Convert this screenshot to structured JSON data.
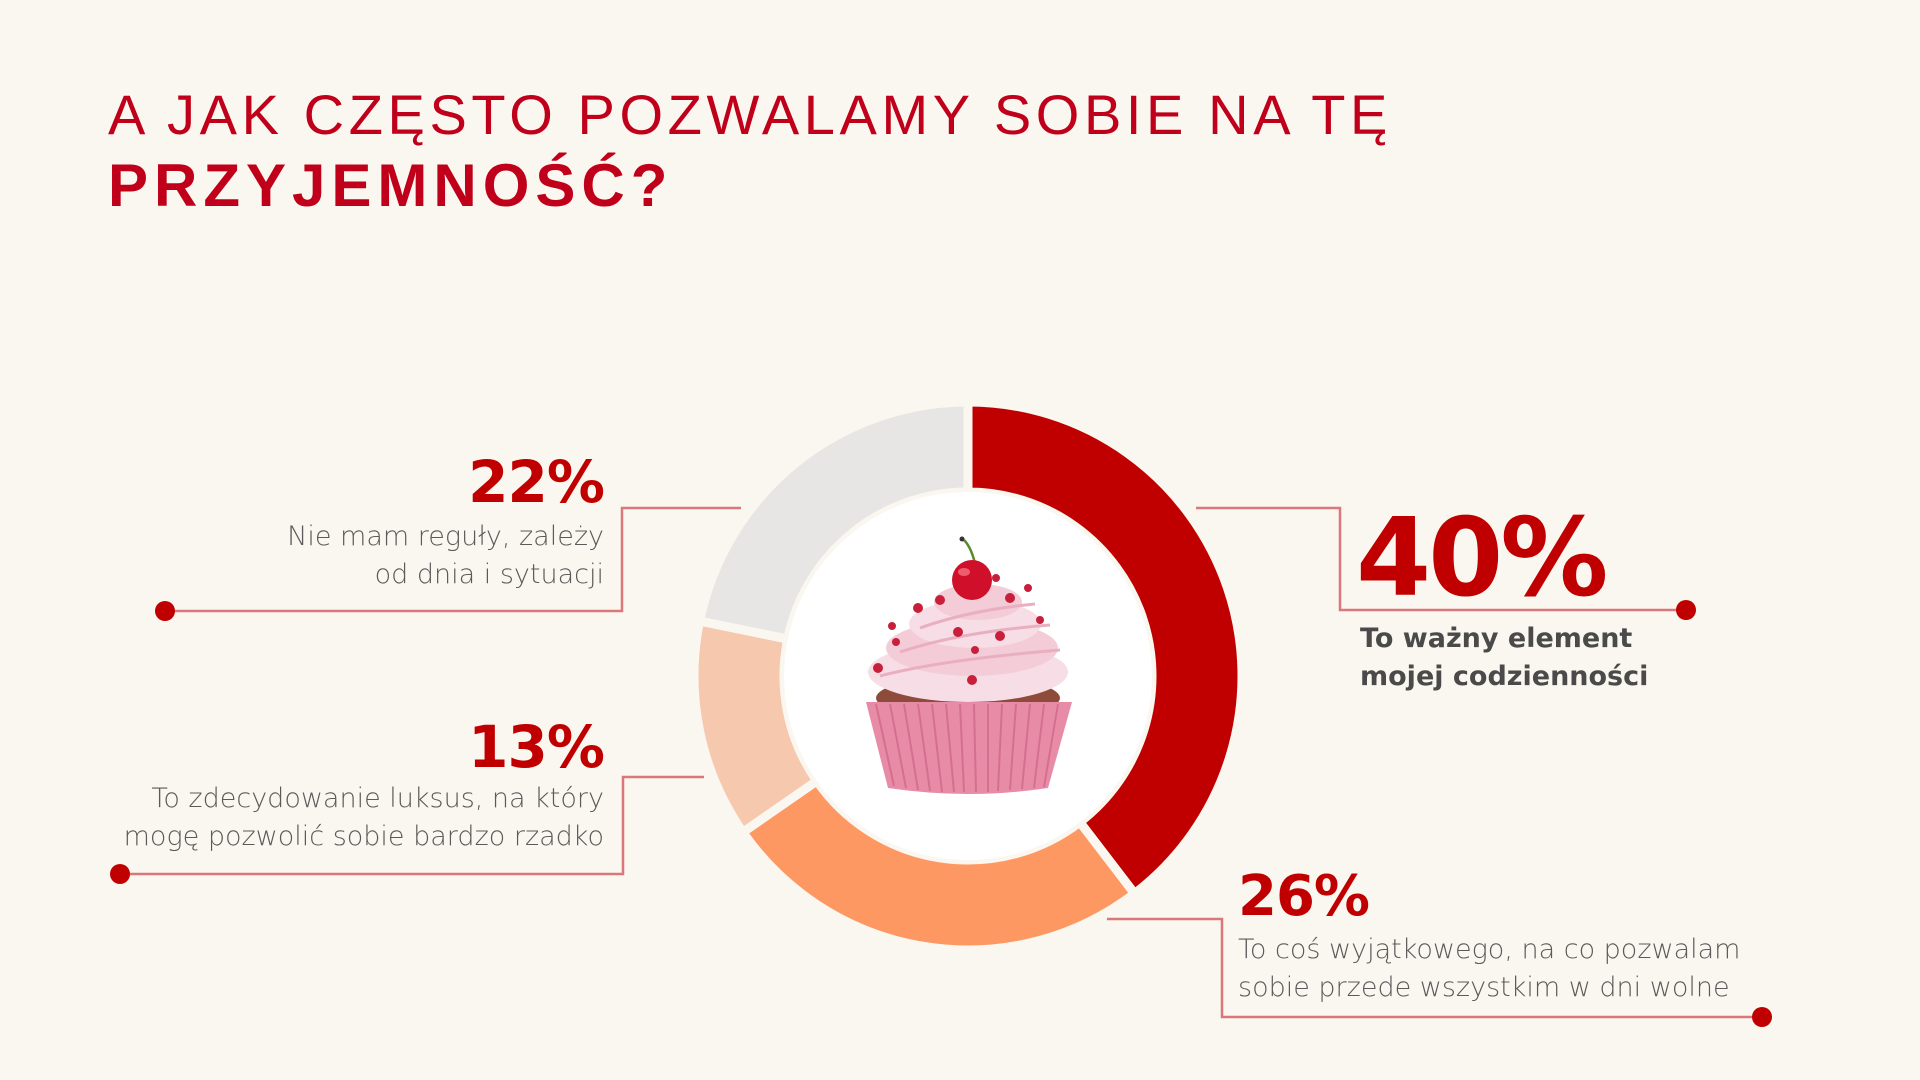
{
  "title": {
    "line1": "A JAK CZĘSTO POZWALAMY SOBIE NA TĘ",
    "line2": "PRZYJEMNOŚĆ?"
  },
  "colors": {
    "background": "#FAF7F0",
    "title": "#C0001A",
    "accent": "#C00000",
    "connector": "#D9777B",
    "label_text": "#5A5A5A",
    "hole": "#FFFFFF"
  },
  "center_image": {
    "icon": "cupcake-with-cherry-icon"
  },
  "segments": [
    {
      "id": "daily",
      "percent_label": "40%",
      "value": 40,
      "color": "#C00000",
      "label_lines": [
        "To ważny element",
        "mojej codzienności"
      ]
    },
    {
      "id": "special",
      "percent_label": "26%",
      "value": 26,
      "color": "#FE9862",
      "label_lines": [
        "To coś wyjątkowego, na co pozwalam",
        "sobie przede wszystkim w dni wolne"
      ]
    },
    {
      "id": "luxury",
      "percent_label": "13%",
      "value": 13,
      "color": "#F6C8AE",
      "label_lines": [
        "To zdecydowanie luksus, na który",
        "mogę pozwolić sobie bardzo rzadko"
      ]
    },
    {
      "id": "no-rule",
      "percent_label": "22%",
      "value": 22,
      "color": "#E8E6E4",
      "label_lines": [
        "Nie mam reguły, zależy",
        "od dnia i sytuacji"
      ]
    }
  ],
  "chart_data": {
    "type": "pie",
    "variant": "donut",
    "title": "A JAK CZĘSTO POZWALAMY SOBIE NA TĘ PRZYJEMNOŚĆ?",
    "categories": [
      "To ważny element mojej codzienności",
      "To coś wyjątkowego, na co pozwalam sobie przede wszystkim w dni wolne",
      "To zdecydowanie luksus, na który mogę pozwolić sobie bardzo rzadko",
      "Nie mam reguły, zależy od dnia i sytuacji"
    ],
    "values": [
      40,
      26,
      13,
      22
    ],
    "unit": "%",
    "colors": [
      "#C00000",
      "#FE9862",
      "#F6C8AE",
      "#E8E6E4"
    ],
    "start_angle": "12 o'clock, clockwise",
    "legend": "callout labels with connector lines"
  }
}
